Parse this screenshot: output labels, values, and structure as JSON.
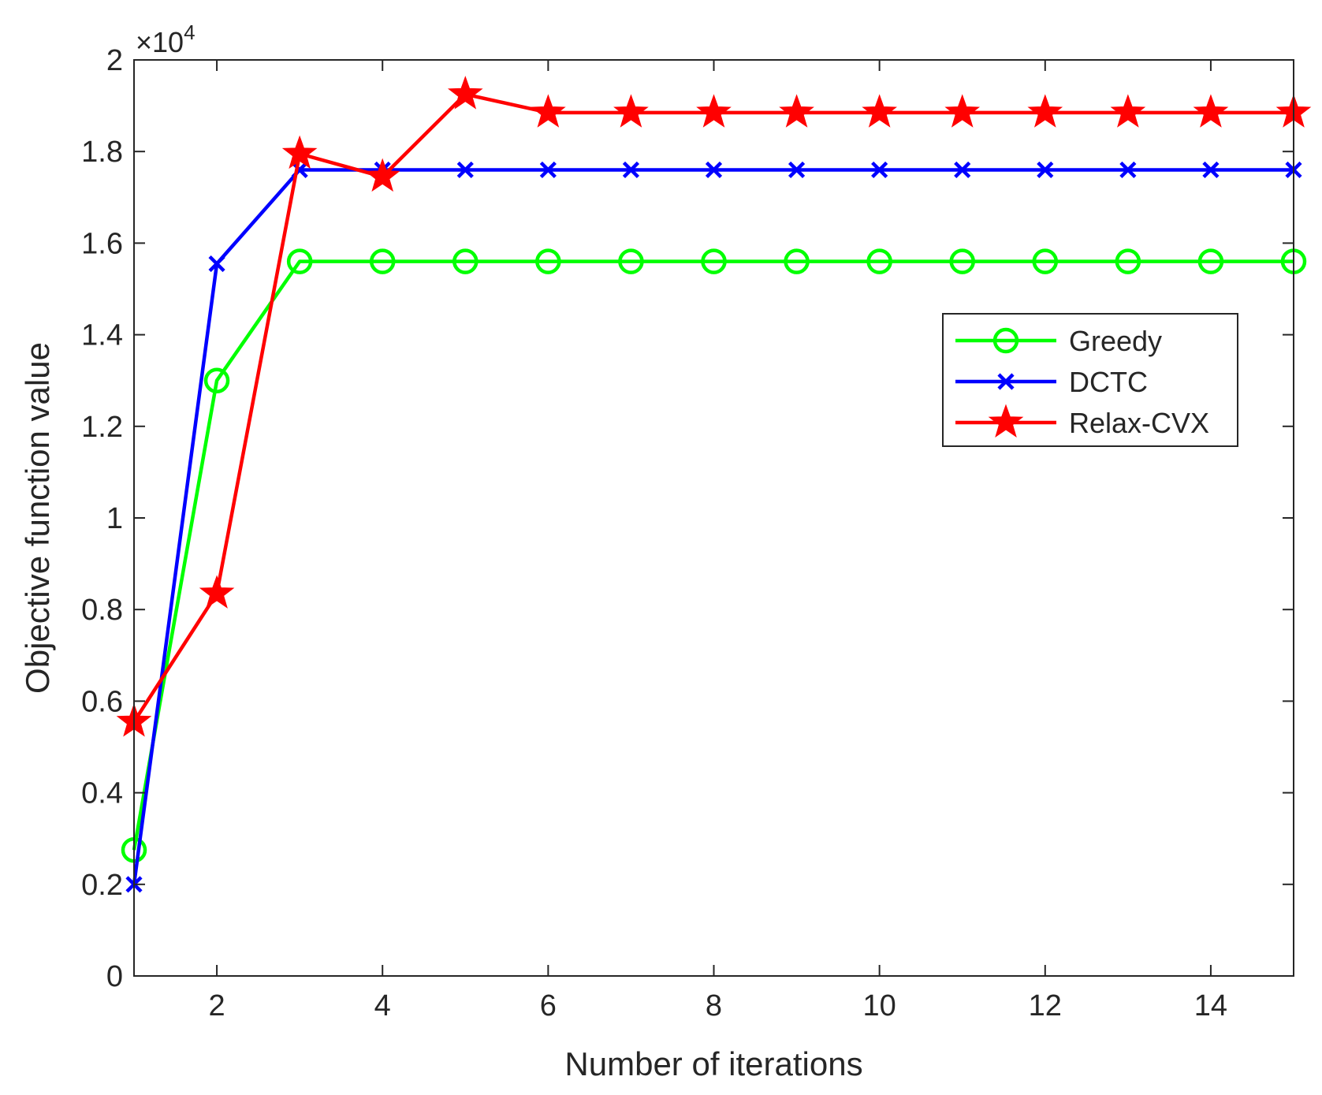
{
  "chart_data": {
    "type": "line",
    "title": "",
    "xlabel": "Number of iterations",
    "ylabel": "Objective function value",
    "exponent_label": {
      "times": "×10",
      "power": "4"
    },
    "xlim": [
      1,
      15
    ],
    "ylim": [
      0,
      2
    ],
    "xticks": [
      2,
      4,
      6,
      8,
      10,
      12,
      14
    ],
    "xtick_labels": [
      "2",
      "4",
      "6",
      "8",
      "10",
      "12",
      "14"
    ],
    "yticks": [
      0,
      0.2,
      0.4,
      0.6,
      0.8,
      1,
      1.2,
      1.4,
      1.6,
      1.8,
      2
    ],
    "ytick_labels": [
      "0",
      "0.2",
      "0.4",
      "0.6",
      "0.8",
      "1",
      "1.2",
      "1.4",
      "1.6",
      "1.8",
      "2"
    ],
    "grid": false,
    "legend_position": "upper-right",
    "x": [
      1,
      2,
      3,
      4,
      5,
      6,
      7,
      8,
      9,
      10,
      11,
      12,
      13,
      14,
      15
    ],
    "series": [
      {
        "name": "Greedy",
        "color": "#00ff00",
        "marker": "circle",
        "values": [
          0.275,
          1.3,
          1.56,
          1.56,
          1.56,
          1.56,
          1.56,
          1.56,
          1.56,
          1.56,
          1.56,
          1.56,
          1.56,
          1.56,
          1.56
        ]
      },
      {
        "name": "DCTC",
        "color": "#0000ff",
        "marker": "x",
        "values": [
          0.2,
          1.555,
          1.76,
          1.76,
          1.76,
          1.76,
          1.76,
          1.76,
          1.76,
          1.76,
          1.76,
          1.76,
          1.76,
          1.76,
          1.76
        ]
      },
      {
        "name": "Relax-CVX",
        "color": "#ff0000",
        "marker": "star",
        "values": [
          0.555,
          0.835,
          1.795,
          1.745,
          1.925,
          1.885,
          1.885,
          1.885,
          1.885,
          1.885,
          1.885,
          1.885,
          1.885,
          1.885,
          1.885
        ]
      }
    ]
  }
}
